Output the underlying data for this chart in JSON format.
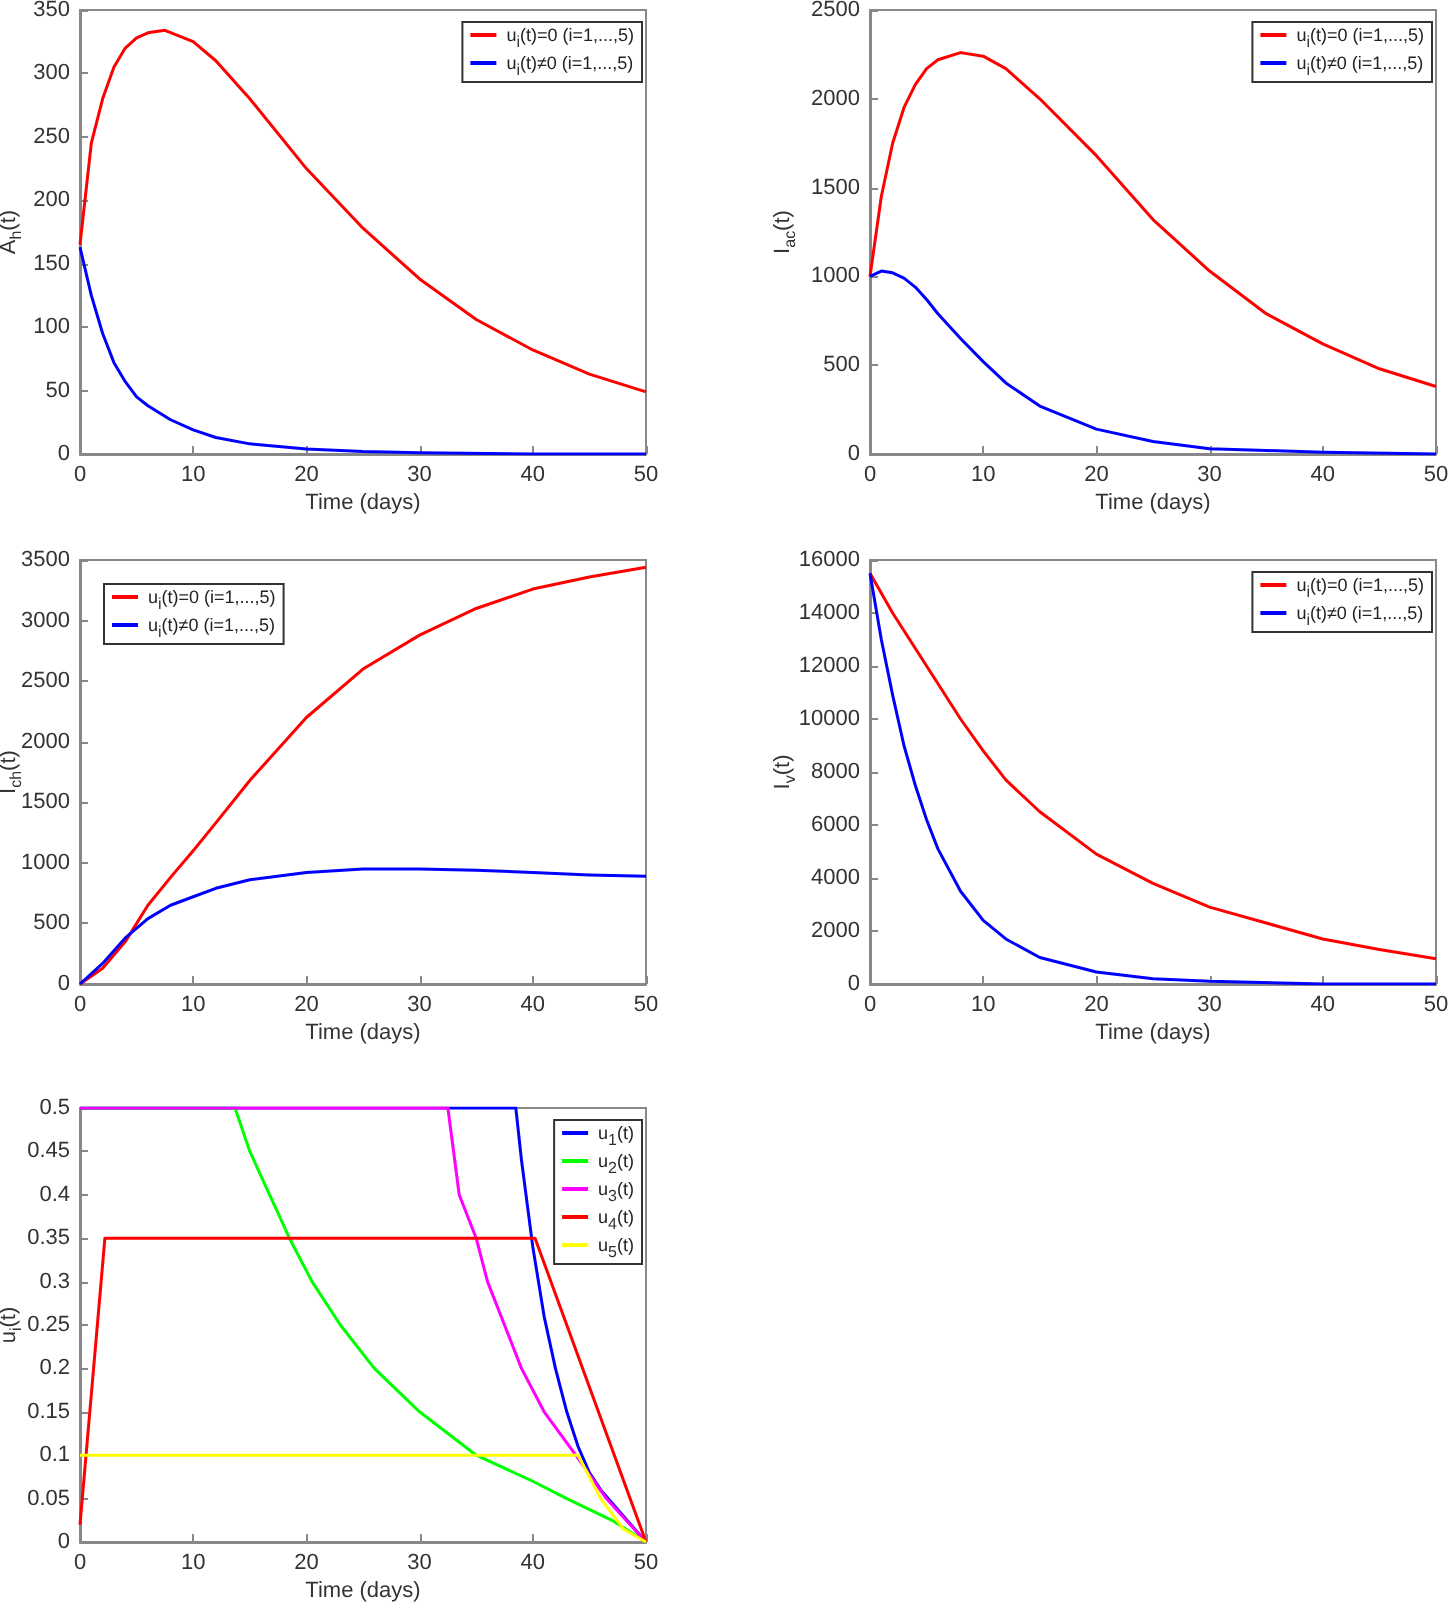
{
  "chart_data": [
    {
      "type": "line",
      "xlabel": "Time (days)",
      "ylabel": "A$_{h}$(t)",
      "xlim": [
        0,
        50
      ],
      "xticks": [
        0,
        10,
        20,
        30,
        40,
        50
      ],
      "ylim": [
        0,
        350
      ],
      "yticks": [
        0,
        50,
        100,
        150,
        200,
        250,
        300,
        350
      ],
      "legend": "top right",
      "series": [
        {
          "name": "u$_{i}$(t)=0 (i=1,...,5)",
          "color": "#ff0000",
          "x": [
            0,
            1,
            2,
            3,
            4,
            5,
            6,
            7.5,
            10,
            12,
            15,
            20,
            25,
            30,
            35,
            40,
            45,
            50
          ],
          "values": [
            165,
            245,
            280,
            305,
            320,
            328,
            332,
            334,
            325,
            310,
            280,
            225,
            178,
            138,
            106,
            82,
            63,
            49
          ]
        },
        {
          "name": "u$_{i}$(t)≠0 (i=1,...,5)",
          "color": "#0000ff",
          "x": [
            0,
            1,
            2,
            3,
            4,
            5,
            6,
            8,
            10,
            12,
            15,
            20,
            25,
            30,
            40,
            50
          ],
          "values": [
            163,
            125,
            95,
            72,
            57,
            45,
            38,
            27,
            19,
            13,
            8,
            4,
            2,
            1,
            0,
            0
          ]
        }
      ]
    },
    {
      "type": "line",
      "xlabel": "Time (days)",
      "ylabel": "I$_{ac}$(t)",
      "xlim": [
        0,
        50
      ],
      "xticks": [
        0,
        10,
        20,
        30,
        40,
        50
      ],
      "ylim": [
        0,
        2500
      ],
      "yticks": [
        0,
        500,
        1000,
        1500,
        2000,
        2500
      ],
      "legend": "top right",
      "series": [
        {
          "name": "u$_{i}$(t)=0 (i=1,...,5)",
          "color": "#ff0000",
          "x": [
            0,
            1,
            2,
            3,
            4,
            5,
            6,
            8,
            10,
            12,
            15,
            20,
            25,
            30,
            35,
            40,
            45,
            50
          ],
          "values": [
            1000,
            1450,
            1750,
            1950,
            2080,
            2170,
            2220,
            2260,
            2240,
            2170,
            2000,
            1680,
            1320,
            1030,
            790,
            620,
            480,
            380
          ]
        },
        {
          "name": "u$_{i}$(t)≠0 (i=1,...,5)",
          "color": "#0000ff",
          "x": [
            0,
            1,
            2,
            3,
            4,
            5,
            6,
            8,
            10,
            12,
            15,
            20,
            25,
            30,
            35,
            40,
            50
          ],
          "values": [
            1000,
            1030,
            1020,
            990,
            940,
            870,
            790,
            650,
            520,
            400,
            270,
            140,
            70,
            30,
            20,
            10,
            0
          ]
        }
      ]
    },
    {
      "type": "line",
      "xlabel": "Time (days)",
      "ylabel": "I$_{ch}$(t)",
      "xlim": [
        0,
        50
      ],
      "xticks": [
        0,
        10,
        20,
        30,
        40,
        50
      ],
      "ylim": [
        0,
        3500
      ],
      "yticks": [
        0,
        500,
        1000,
        1500,
        2000,
        2500,
        3000,
        3500
      ],
      "legend": "top left",
      "series": [
        {
          "name": "u$_{i}$(t)=0 (i=1,...,5)",
          "color": "#ff0000",
          "x": [
            0,
            2,
            4,
            6,
            8,
            10,
            12,
            15,
            20,
            25,
            30,
            35,
            40,
            45,
            50
          ],
          "values": [
            0,
            130,
            350,
            650,
            880,
            1100,
            1330,
            1680,
            2200,
            2600,
            2880,
            3100,
            3260,
            3360,
            3440
          ]
        },
        {
          "name": "u$_{i}$(t)≠0 (i=1,...,5)",
          "color": "#0000ff",
          "x": [
            0,
            2,
            4,
            6,
            8,
            10,
            12,
            15,
            20,
            25,
            28,
            30,
            35,
            40,
            45,
            50
          ],
          "values": [
            0,
            170,
            380,
            540,
            650,
            720,
            790,
            860,
            920,
            950,
            950,
            950,
            940,
            920,
            900,
            890
          ]
        }
      ]
    },
    {
      "type": "line",
      "xlabel": "Time (days)",
      "ylabel": "I$_{v}$(t)",
      "xlim": [
        0,
        50
      ],
      "xticks": [
        0,
        10,
        20,
        30,
        40,
        50
      ],
      "ylim": [
        0,
        16000
      ],
      "yticks": [
        0,
        2000,
        4000,
        6000,
        8000,
        10000,
        12000,
        14000,
        16000
      ],
      "legend": "top right",
      "series": [
        {
          "name": "u$_{i}$(t)=0 (i=1,...,5)",
          "color": "#ff0000",
          "x": [
            0,
            2,
            5,
            8,
            10,
            12,
            15,
            20,
            25,
            30,
            35,
            40,
            45,
            50
          ],
          "values": [
            15500,
            14000,
            12000,
            10000,
            8800,
            7700,
            6500,
            4900,
            3800,
            2900,
            2300,
            1700,
            1300,
            950
          ]
        },
        {
          "name": "u$_{i}$(t)≠0 (i=1,...,5)",
          "color": "#0000ff",
          "x": [
            0,
            1,
            2,
            3,
            4,
            5,
            6,
            8,
            10,
            12,
            15,
            20,
            25,
            30,
            40,
            50
          ],
          "values": [
            15500,
            13000,
            10900,
            9000,
            7500,
            6200,
            5100,
            3500,
            2400,
            1700,
            1000,
            450,
            200,
            100,
            0,
            0
          ]
        }
      ]
    },
    {
      "type": "line",
      "xlabel": "Time (days)",
      "ylabel": "u$_{i}$(t)",
      "xlim": [
        0,
        50
      ],
      "xticks": [
        0,
        10,
        20,
        30,
        40,
        50
      ],
      "ylim": [
        0,
        0.5
      ],
      "yticks": [
        0,
        0.05,
        0.1,
        0.15,
        0.2,
        0.25,
        0.3,
        0.35,
        0.4,
        0.45,
        0.5
      ],
      "legend": "top right",
      "series": [
        {
          "name": "u$_{1}$(t)",
          "color": "#0000ff",
          "x": [
            0,
            38.5,
            39,
            40,
            41,
            42,
            43,
            44,
            45,
            46,
            48,
            50
          ],
          "values": [
            0.5,
            0.5,
            0.44,
            0.34,
            0.26,
            0.2,
            0.15,
            0.11,
            0.08,
            0.06,
            0.03,
            0
          ]
        },
        {
          "name": "u$_{2}$(t)",
          "color": "#00ff00",
          "x": [
            0,
            13.7,
            15,
            18.5,
            20.5,
            23,
            26,
            30,
            35,
            40,
            43,
            47,
            50
          ],
          "values": [
            0.5,
            0.5,
            0.45,
            0.35,
            0.3,
            0.25,
            0.2,
            0.15,
            0.1,
            0.07,
            0.05,
            0.025,
            0
          ]
        },
        {
          "name": "u$_{3}$(t)",
          "color": "#ff00ff",
          "x": [
            0,
            32.5,
            33.5,
            35,
            36,
            37.5,
            39,
            41,
            43.8,
            46.5,
            50
          ],
          "values": [
            0.5,
            0.5,
            0.4,
            0.35,
            0.3,
            0.25,
            0.2,
            0.15,
            0.1,
            0.05,
            0
          ]
        },
        {
          "name": "u$_{4}$(t)",
          "color": "#ff0000",
          "x": [
            0,
            2.2,
            40.2,
            50
          ],
          "values": [
            0.02,
            0.35,
            0.35,
            0
          ]
        },
        {
          "name": "u$_{5}$(t)",
          "color": "#ffff00",
          "x": [
            0,
            44,
            46,
            48,
            50
          ],
          "values": [
            0.1,
            0.1,
            0.05,
            0.015,
            0
          ]
        }
      ]
    }
  ]
}
